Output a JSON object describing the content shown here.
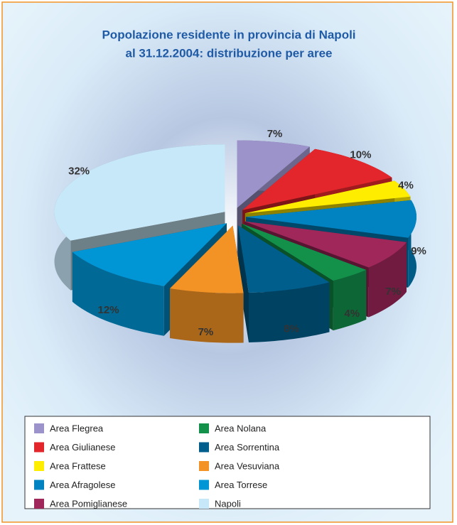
{
  "chart_data": {
    "type": "pie3d",
    "title": [
      "Popolazione residente in provincia di Napoli",
      "al 31.12.2004: distribuzione per aree"
    ],
    "categories": [
      "Area Flegrea",
      "Area Giulianese",
      "Area Frattese",
      "Area Afragolese",
      "Area Pomiglianese",
      "Area Nolana",
      "Area Sorrentina",
      "Area Vesuviana",
      "Area Torrese",
      "Napoli"
    ],
    "values": [
      7,
      10,
      4,
      9,
      7,
      4,
      8,
      7,
      12,
      32
    ],
    "value_labels": [
      "7%",
      "10%",
      "4%",
      "9%",
      "7%",
      "4%",
      "8%",
      "7%",
      "12%",
      "32%"
    ],
    "colors": [
      "#9b93c9",
      "#e3262b",
      "#ffed00",
      "#0083c0",
      "#a0275a",
      "#13914b",
      "#005e8c",
      "#f39325",
      "#0096d6",
      "#c7e8f8"
    ],
    "legend": "bottom"
  }
}
